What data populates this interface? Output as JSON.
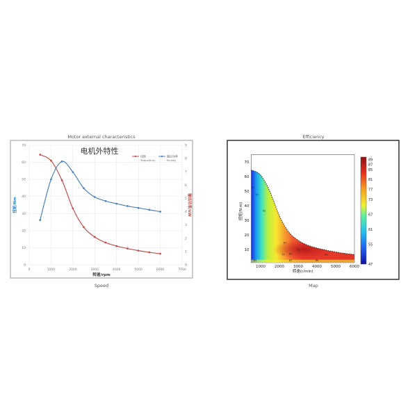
{
  "chart_data": [
    {
      "type": "line",
      "caption_top": "Motor external characteristics",
      "caption_bottom": "Speed",
      "title": "电机外特性",
      "xlabel": "转速/rpm",
      "ylabel": "扭矩/Nm",
      "y2label": "输出功率/kW",
      "xlim": [
        0,
        7000
      ],
      "ylim": [
        0,
        70
      ],
      "y2lim": [
        0,
        9
      ],
      "xticks": [
        "0",
        "1000",
        "2000",
        "3000",
        "4000",
        "5000",
        "6000",
        "7000"
      ],
      "yticks": [
        "0",
        "10",
        "20",
        "30",
        "40",
        "50",
        "60",
        "70"
      ],
      "y2ticks": [
        "0",
        "1",
        "2",
        "3",
        "4",
        "5",
        "6",
        "7",
        "8",
        "9"
      ],
      "grid": true,
      "legend_position": "top-right",
      "x": [
        500,
        1000,
        1500,
        2000,
        2500,
        3000,
        3500,
        4000,
        4500,
        5000,
        5500,
        6000
      ],
      "series": [
        {
          "name": "扭矩",
          "name_en": "Torque(N.m)",
          "axis": "left",
          "color": "#c0504d",
          "values": [
            64.5,
            61,
            49.5,
            33,
            22,
            16.3,
            13,
            11,
            9.5,
            8.3,
            7.3,
            6.5
          ]
        },
        {
          "name": "输出功率",
          "name_en": "Pm(kw)",
          "axis": "right",
          "color": "#4f81bd",
          "values": [
            3.37,
            6.43,
            7.78,
            6.98,
            5.76,
            5.1,
            4.8,
            4.6,
            4.42,
            4.28,
            4.14,
            4.0
          ]
        }
      ]
    },
    {
      "type": "heatmap",
      "caption_top": "Efficiency",
      "caption_bottom": "Map",
      "xlabel": "转速(r/min)",
      "ylabel": "扭矩(N.m)",
      "xlim": [
        500,
        6000
      ],
      "ylim": [
        1,
        75
      ],
      "xticks": [
        "1000",
        "2000",
        "3000",
        "4000",
        "5000",
        "6000"
      ],
      "yticks": [
        "10",
        "20",
        "30",
        "40",
        "50",
        "60",
        "70"
      ],
      "colorbar_ticks": [
        "89",
        "87",
        "85",
        "81",
        "77",
        "73",
        "67",
        "61",
        "55",
        "47"
      ],
      "colorbar_range": [
        47,
        90
      ],
      "colormap": "jet",
      "boundary_speed": [
        500,
        1000,
        1500,
        2000,
        2500,
        3000,
        3500,
        4000,
        4500,
        5000,
        5500,
        6000
      ],
      "boundary_torque": [
        64.5,
        61,
        49.5,
        33,
        22,
        16.3,
        13,
        11,
        9.5,
        8.3,
        7.3,
        6.5
      ],
      "contour_labels": [
        "47",
        "55",
        "61",
        "67",
        "73",
        "77",
        "81",
        "84",
        "85",
        "87",
        "89"
      ]
    }
  ]
}
